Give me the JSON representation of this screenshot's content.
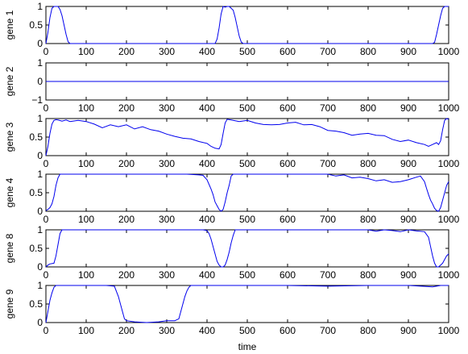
{
  "chart_data": {
    "type": "line",
    "xlabel": "time",
    "xlim": [
      0,
      1000
    ],
    "x_ticks": [
      0,
      100,
      200,
      300,
      400,
      500,
      600,
      700,
      800,
      900,
      1000
    ],
    "line_color": "#0000ee",
    "grid": false,
    "subplots": [
      {
        "ylabel": "gene 1",
        "ylim": [
          0,
          1
        ],
        "y_ticks": [
          0,
          0.5,
          1
        ],
        "series": [
          {
            "x": [
              0,
              5,
              10,
              15,
              20,
              25,
              30,
              35,
              40,
              45,
              50,
              55,
              60,
              70,
              100,
              200,
              300,
              400,
              420,
              425,
              430,
              435,
              440,
              445,
              450,
              455,
              460,
              465,
              470,
              475,
              480,
              485,
              490,
              500,
              600,
              700,
              800,
              900,
              950,
              960,
              965,
              970,
              975,
              980,
              985,
              990,
              995,
              1000
            ],
            "y": [
              0,
              0.3,
              0.7,
              0.95,
              1,
              1,
              1,
              0.92,
              0.75,
              0.5,
              0.25,
              0.05,
              0,
              0,
              0,
              0,
              0,
              0,
              0,
              0.12,
              0.42,
              0.8,
              1,
              0.98,
              1,
              1,
              0.95,
              0.9,
              0.7,
              0.45,
              0.2,
              0.04,
              0,
              0,
              0,
              0,
              0,
              0,
              0,
              0,
              0.03,
              0.25,
              0.5,
              0.75,
              0.95,
              1,
              1,
              1
            ]
          }
        ]
      },
      {
        "ylabel": "gene 2",
        "ylim": [
          -1,
          1
        ],
        "y_ticks": [
          -1,
          0,
          1
        ],
        "series": [
          {
            "x": [
              0,
              1000
            ],
            "y": [
              0,
              0
            ]
          }
        ]
      },
      {
        "ylabel": "gene 3",
        "ylim": [
          0,
          1
        ],
        "y_ticks": [
          0,
          0.5,
          1
        ],
        "series": [
          {
            "x": [
              0,
              5,
              10,
              15,
              20,
              25,
              30,
              40,
              50,
              60,
              80,
              100,
              120,
              140,
              160,
              180,
              200,
              220,
              240,
              260,
              280,
              300,
              320,
              340,
              360,
              380,
              400,
              410,
              420,
              430,
              435,
              440,
              445,
              450,
              460,
              480,
              500,
              520,
              540,
              560,
              580,
              600,
              620,
              640,
              660,
              680,
              700,
              720,
              740,
              760,
              780,
              800,
              820,
              840,
              860,
              880,
              900,
              920,
              940,
              950,
              960,
              970,
              975,
              980,
              985,
              990,
              995,
              1000
            ],
            "y": [
              0,
              0.25,
              0.6,
              0.85,
              0.95,
              0.97,
              0.96,
              0.93,
              0.96,
              0.92,
              0.95,
              0.92,
              0.85,
              0.75,
              0.83,
              0.78,
              0.83,
              0.72,
              0.78,
              0.7,
              0.66,
              0.58,
              0.52,
              0.47,
              0.45,
              0.38,
              0.33,
              0.25,
              0.2,
              0.18,
              0.3,
              0.6,
              0.88,
              0.98,
              0.96,
              0.92,
              0.95,
              0.88,
              0.84,
              0.83,
              0.84,
              0.88,
              0.9,
              0.83,
              0.84,
              0.78,
              0.68,
              0.66,
              0.62,
              0.55,
              0.58,
              0.6,
              0.55,
              0.54,
              0.44,
              0.38,
              0.42,
              0.35,
              0.3,
              0.25,
              0.3,
              0.35,
              0.3,
              0.4,
              0.7,
              0.95,
              1,
              0.98
            ]
          }
        ]
      },
      {
        "ylabel": "gene 4",
        "ylim": [
          0,
          1
        ],
        "y_ticks": [
          0,
          0.5,
          1
        ],
        "series": [
          {
            "x": [
              0,
              5,
              10,
              15,
              20,
              25,
              30,
              35,
              40,
              45,
              50,
              100,
              200,
              300,
              350,
              380,
              390,
              400,
              410,
              415,
              420,
              425,
              430,
              435,
              440,
              445,
              450,
              455,
              460,
              465,
              470,
              480,
              500,
              600,
              700,
              720,
              740,
              760,
              780,
              800,
              820,
              840,
              860,
              880,
              900,
              920,
              930,
              940,
              945,
              950,
              955,
              960,
              965,
              970,
              975,
              980,
              985,
              990,
              995,
              1000
            ],
            "y": [
              0.02,
              0.05,
              0.1,
              0.2,
              0.4,
              0.7,
              0.9,
              1,
              1,
              1,
              1,
              1,
              1,
              1,
              1,
              0.98,
              0.97,
              0.85,
              0.6,
              0.45,
              0.25,
              0.15,
              0.05,
              0,
              0.05,
              0.25,
              0.5,
              0.7,
              0.95,
              1,
              1,
              1,
              1,
              1,
              1,
              0.95,
              0.98,
              0.9,
              0.92,
              0.88,
              0.82,
              0.85,
              0.78,
              0.8,
              0.85,
              0.92,
              0.95,
              0.8,
              0.62,
              0.45,
              0.3,
              0.2,
              0.08,
              0.02,
              0,
              0.1,
              0.3,
              0.5,
              0.7,
              0.8
            ]
          }
        ]
      },
      {
        "ylabel": "gene 8",
        "ylim": [
          0,
          1
        ],
        "y_ticks": [
          0,
          0.5,
          1
        ],
        "series": [
          {
            "x": [
              0,
              5,
              10,
              20,
              25,
              30,
              35,
              40,
              45,
              50,
              100,
              200,
              300,
              390,
              400,
              405,
              410,
              415,
              420,
              425,
              430,
              435,
              440,
              445,
              450,
              455,
              460,
              465,
              470,
              475,
              480,
              490,
              500,
              600,
              700,
              800,
              820,
              840,
              860,
              880,
              900,
              920,
              940,
              950,
              955,
              960,
              965,
              970,
              975,
              980,
              985,
              990,
              995,
              1000
            ],
            "y": [
              0,
              0.05,
              0.08,
              0.1,
              0.3,
              0.6,
              0.9,
              1,
              1,
              1,
              1,
              1,
              1,
              1,
              0.98,
              0.9,
              0.75,
              0.55,
              0.35,
              0.15,
              0.05,
              0,
              0,
              0.05,
              0.2,
              0.4,
              0.65,
              0.85,
              1,
              1,
              1,
              1,
              1,
              1,
              1,
              1,
              0.96,
              1,
              0.98,
              0.95,
              1,
              0.97,
              0.95,
              0.8,
              0.55,
              0.3,
              0.1,
              0,
              0,
              0.05,
              0.1,
              0.2,
              0.3,
              0.35
            ]
          }
        ]
      },
      {
        "ylabel": "gene 9",
        "ylim": [
          0,
          1
        ],
        "y_ticks": [
          0,
          0.5,
          1
        ],
        "series": [
          {
            "x": [
              0,
              5,
              10,
              15,
              20,
              25,
              50,
              100,
              150,
              170,
              180,
              185,
              190,
              195,
              200,
              220,
              250,
              280,
              300,
              320,
              330,
              335,
              340,
              345,
              350,
              355,
              360,
              380,
              400,
              500,
              600,
              700,
              800,
              900,
              960,
              980,
              1000
            ],
            "y": [
              0,
              0.3,
              0.6,
              0.8,
              0.95,
              1,
              1,
              1,
              1,
              0.98,
              0.7,
              0.5,
              0.3,
              0.1,
              0.05,
              0.02,
              0,
              0.02,
              0.05,
              0.05,
              0.1,
              0.3,
              0.5,
              0.7,
              0.85,
              0.95,
              1,
              1,
              1,
              1,
              1,
              0.98,
              1,
              1,
              0.96,
              1,
              1
            ]
          }
        ]
      }
    ]
  }
}
